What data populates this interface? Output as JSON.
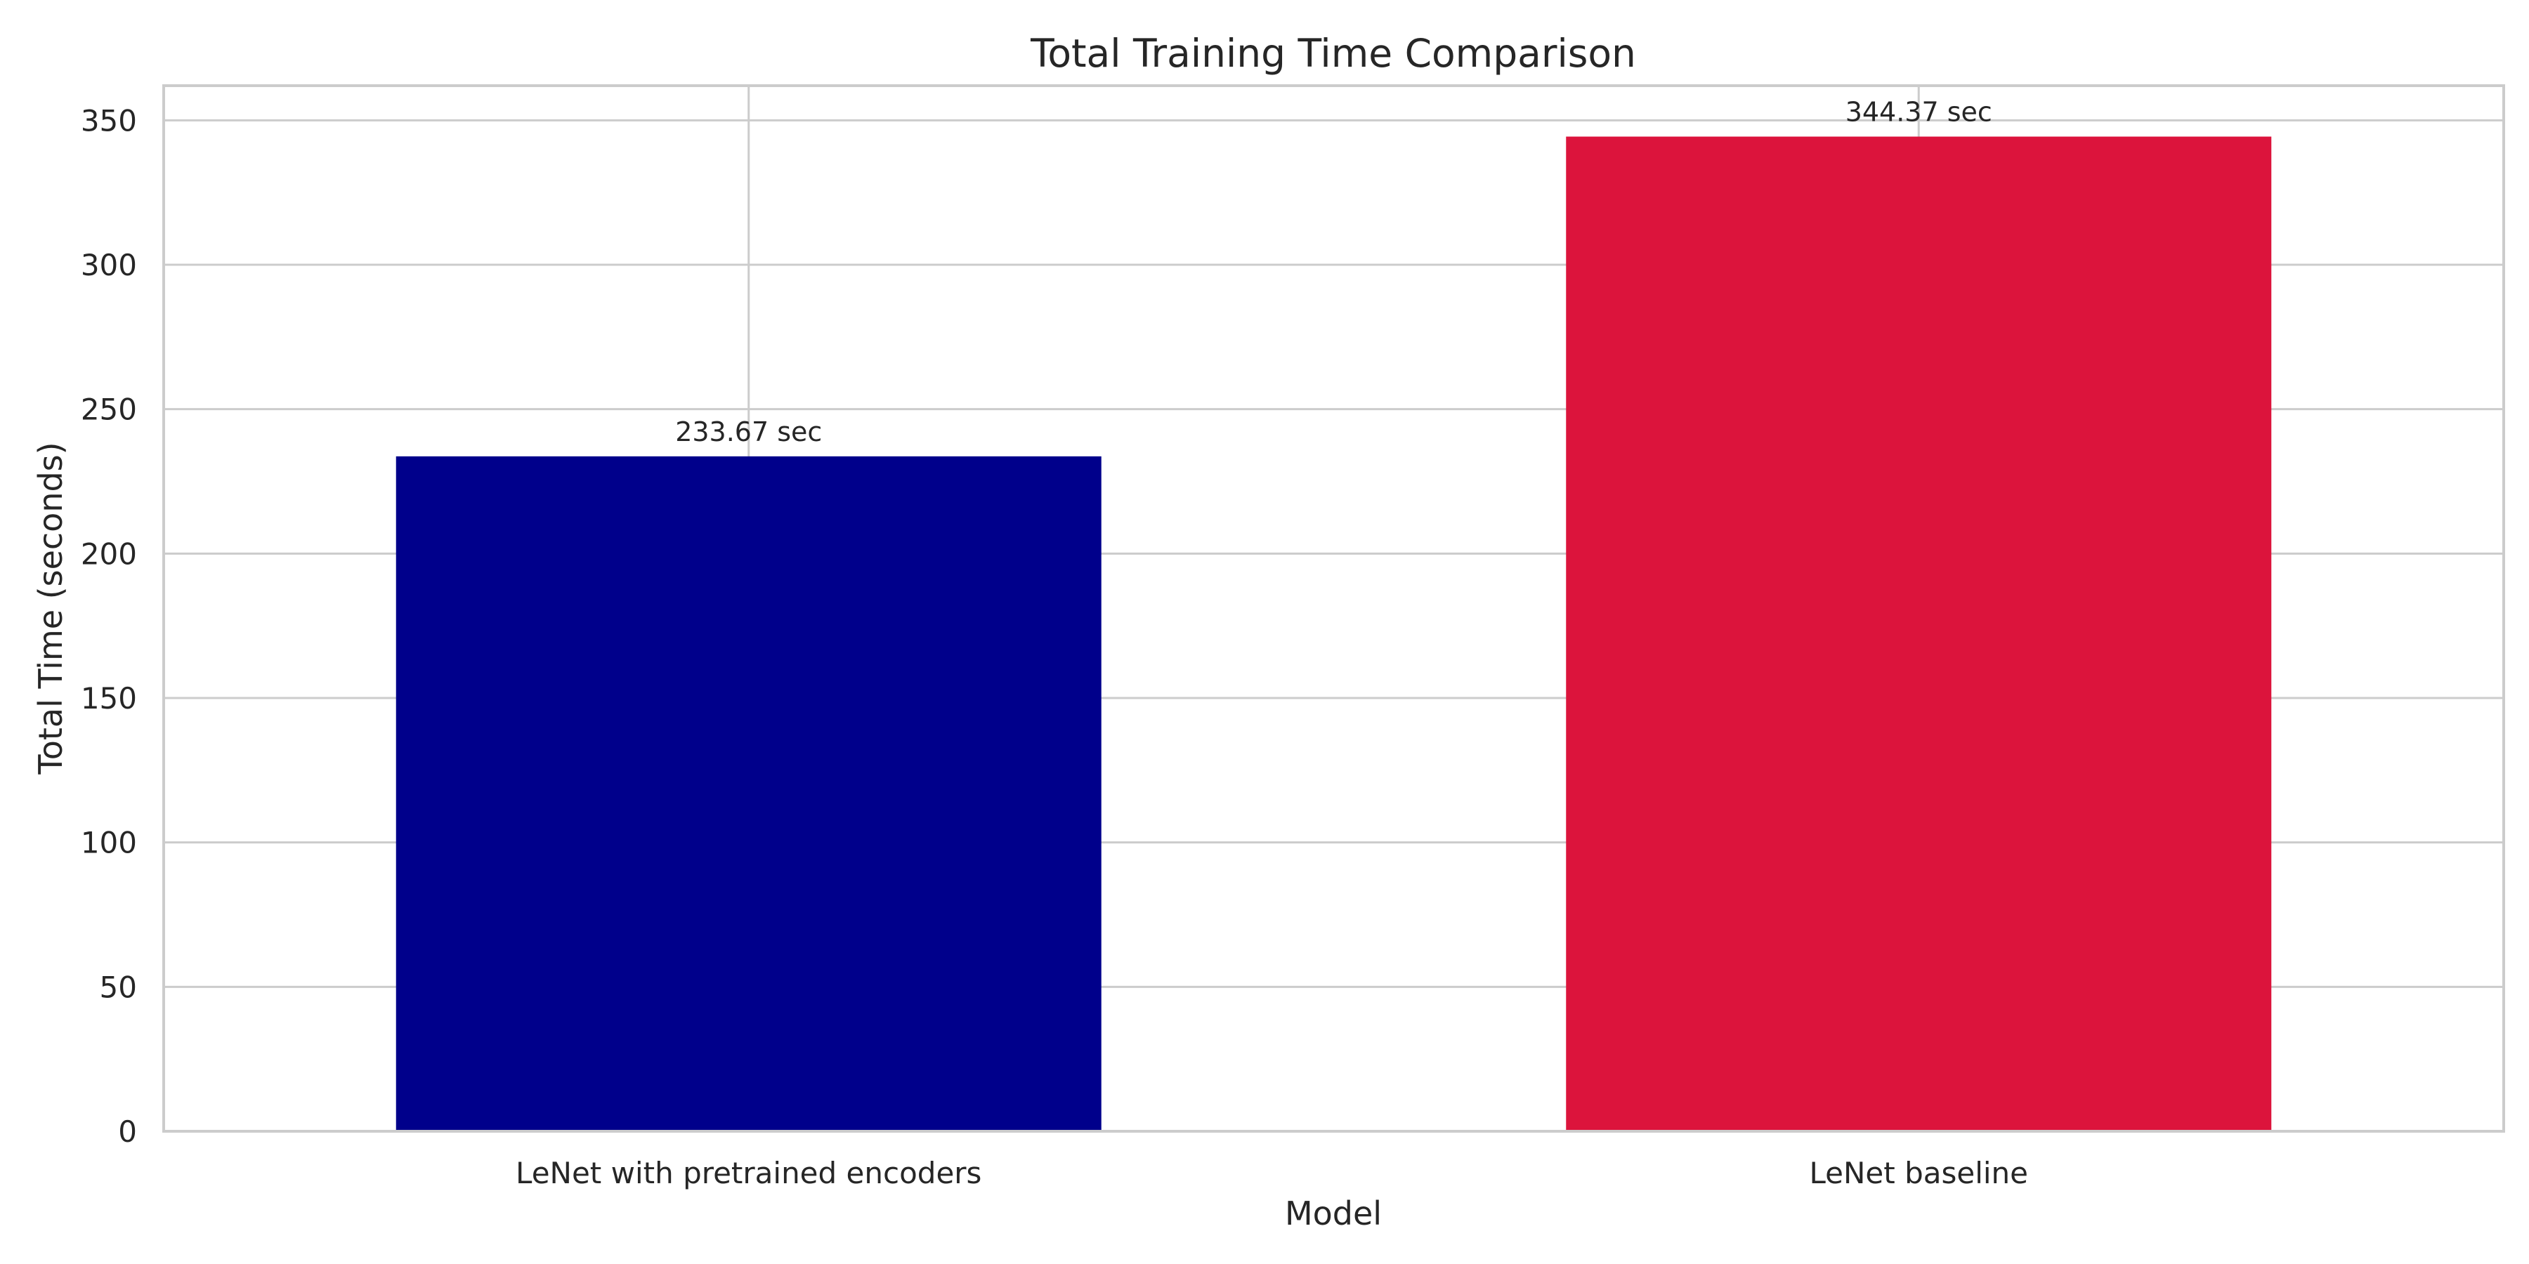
{
  "chart_data": {
    "type": "bar",
    "title": "Total Training Time Comparison",
    "xlabel": "Model",
    "ylabel": "Total Time (seconds)",
    "categories": [
      "LeNet with pretrained encoders",
      "LeNet baseline"
    ],
    "values": [
      233.67,
      344.37
    ],
    "data_labels": [
      "233.67 sec",
      "344.37 sec"
    ],
    "colors": [
      "#00008b",
      "#dc143c"
    ],
    "ylim": [
      0,
      362
    ],
    "yticks": [
      0,
      50,
      100,
      150,
      200,
      250,
      300,
      350
    ],
    "grid": true,
    "legend": "none"
  }
}
